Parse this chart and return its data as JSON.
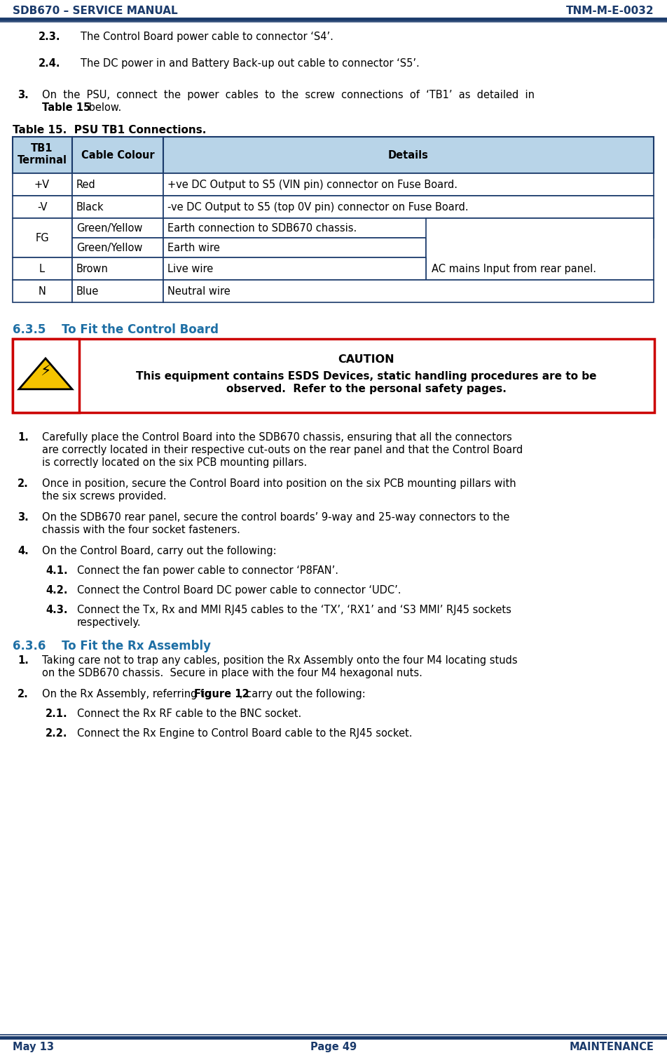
{
  "header_left": "SDB670 – SERVICE MANUAL",
  "header_right": "TNM-M-E-0032",
  "footer_left": "May 13",
  "footer_center": "Page 49",
  "footer_right": "MAINTENANCE",
  "blue_dark": "#1a3a6b",
  "blue_mid": "#1e6fa5",
  "table_header_bg": "#b8d4e8",
  "table_border": "#1a3a6b",
  "section_heading_color": "#1e6fa5",
  "caution_border": "#cc0000",
  "caution_title": "CAUTION",
  "caution_line1": "This equipment contains ESDS Devices, static handling procedures are to be",
  "caution_line2": "observed.  Refer to the personal safety pages.",
  "section_635": "6.3.5",
  "section_635_text": "    To Fit the Control Board",
  "section_636": "6.3.6",
  "section_636_text": "    To Fit the Rx Assembly"
}
